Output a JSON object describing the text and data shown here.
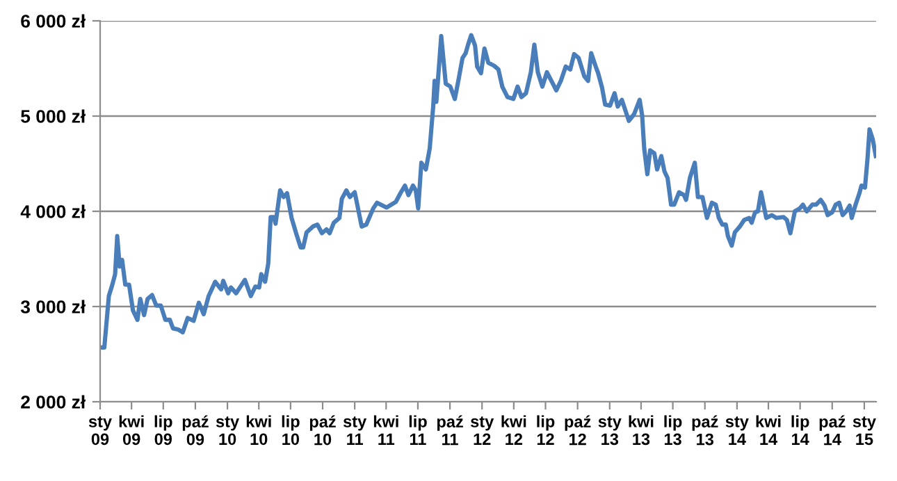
{
  "chart_data": {
    "type": "line",
    "x": [
      "2009-01-03",
      "2009-01-13",
      "2009-01-26",
      "2009-02-05",
      "2009-02-13",
      "2009-02-19",
      "2009-02-26",
      "2009-03-05",
      "2009-03-14",
      "2009-03-25",
      "2009-04-05",
      "2009-04-18",
      "2009-04-26",
      "2009-05-07",
      "2009-05-17",
      "2009-05-30",
      "2009-06-11",
      "2009-06-24",
      "2009-07-07",
      "2009-07-20",
      "2009-07-29",
      "2009-08-12",
      "2009-08-26",
      "2009-09-09",
      "2009-09-26",
      "2009-10-11",
      "2009-10-25",
      "2009-11-08",
      "2009-11-27",
      "2009-12-14",
      "2009-12-20",
      "2010-01-03",
      "2010-01-11",
      "2010-01-26",
      "2010-02-20",
      "2010-03-09",
      "2010-03-22",
      "2010-04-02",
      "2010-04-08",
      "2010-04-19",
      "2010-04-28",
      "2010-05-05",
      "2010-05-14",
      "2010-05-19",
      "2010-06-01",
      "2010-06-11",
      "2010-06-21",
      "2010-07-04",
      "2010-07-17",
      "2010-07-30",
      "2010-08-06",
      "2010-08-16",
      "2010-09-03",
      "2010-09-16",
      "2010-09-29",
      "2010-10-12",
      "2010-10-21",
      "2010-11-02",
      "2010-11-18",
      "2010-11-25",
      "2010-12-08",
      "2010-12-18",
      "2011-01-01",
      "2011-01-21",
      "2011-02-03",
      "2011-02-23",
      "2011-03-06",
      "2011-04-02",
      "2011-04-29",
      "2011-05-12",
      "2011-05-25",
      "2011-06-04",
      "2011-06-17",
      "2011-06-25",
      "2011-07-02",
      "2011-07-11",
      "2011-07-24",
      "2011-08-04",
      "2011-08-14",
      "2011-08-18",
      "2011-08-23",
      "2011-09-06",
      "2011-09-19",
      "2011-10-02",
      "2011-10-15",
      "2011-10-26",
      "2011-11-06",
      "2011-11-15",
      "2011-11-22",
      "2011-12-01",
      "2011-12-12",
      "2011-12-18",
      "2011-12-29",
      "2012-01-08",
      "2012-01-19",
      "2012-02-04",
      "2012-02-17",
      "2012-02-28",
      "2012-03-14",
      "2012-03-31",
      "2012-04-12",
      "2012-04-23",
      "2012-05-06",
      "2012-05-20",
      "2012-05-30",
      "2012-06-09",
      "2012-06-22",
      "2012-07-05",
      "2012-07-18",
      "2012-08-01",
      "2012-08-14",
      "2012-08-28",
      "2012-09-10",
      "2012-09-21",
      "2012-10-04",
      "2012-10-20",
      "2012-10-31",
      "2012-11-09",
      "2012-11-22",
      "2012-11-29",
      "2012-12-10",
      "2012-12-19",
      "2013-01-02",
      "2013-01-15",
      "2013-01-24",
      "2013-02-05",
      "2013-02-25",
      "2013-03-12",
      "2013-03-28",
      "2013-04-04",
      "2013-04-10",
      "2013-04-19",
      "2013-04-27",
      "2013-05-09",
      "2013-05-17",
      "2013-05-29",
      "2013-06-07",
      "2013-06-16",
      "2013-06-26",
      "2013-07-05",
      "2013-07-19",
      "2013-08-02",
      "2013-08-08",
      "2013-08-19",
      "2013-09-02",
      "2013-09-11",
      "2013-09-24",
      "2013-10-07",
      "2013-10-21",
      "2013-11-01",
      "2013-11-10",
      "2013-11-20",
      "2013-11-30",
      "2013-12-06",
      "2013-12-17",
      "2013-12-26",
      "2014-01-09",
      "2014-01-22",
      "2014-02-05",
      "2014-02-12",
      "2014-02-22",
      "2014-03-02",
      "2014-03-11",
      "2014-03-26",
      "2014-04-11",
      "2014-04-24",
      "2014-05-14",
      "2014-05-24",
      "2014-06-03",
      "2014-06-16",
      "2014-06-30",
      "2014-07-09",
      "2014-07-20",
      "2014-08-05",
      "2014-08-16",
      "2014-08-29",
      "2014-09-09",
      "2014-09-18",
      "2014-10-01",
      "2014-10-11",
      "2014-10-21",
      "2014-10-31",
      "2014-11-10",
      "2014-11-20",
      "2014-11-26",
      "2014-12-07",
      "2014-12-18",
      "2014-12-24",
      "2015-01-03",
      "2015-01-10",
      "2015-01-16",
      "2015-01-25",
      "2015-02-03"
    ],
    "series": [
      {
        "color": "#4a7ebb",
        "values": [
          2570,
          2570,
          3110,
          3230,
          3340,
          3740,
          3420,
          3490,
          3230,
          3230,
          2960,
          2860,
          3080,
          2910,
          3080,
          3120,
          3010,
          3010,
          2860,
          2860,
          2770,
          2760,
          2730,
          2880,
          2850,
          3040,
          2920,
          3110,
          3260,
          3180,
          3270,
          3140,
          3200,
          3140,
          3280,
          3110,
          3210,
          3200,
          3340,
          3260,
          3450,
          3940,
          3940,
          3870,
          4220,
          4150,
          4190,
          3930,
          3770,
          3620,
          3620,
          3780,
          3840,
          3860,
          3770,
          3810,
          3770,
          3880,
          3930,
          4130,
          4220,
          4150,
          4200,
          3840,
          3860,
          4030,
          4090,
          4040,
          4100,
          4190,
          4270,
          4170,
          4270,
          4220,
          4030,
          4510,
          4440,
          4660,
          5100,
          5370,
          5150,
          5840,
          5340,
          5310,
          5180,
          5390,
          5610,
          5660,
          5750,
          5850,
          5740,
          5520,
          5450,
          5710,
          5560,
          5530,
          5490,
          5310,
          5200,
          5180,
          5310,
          5200,
          5240,
          5460,
          5750,
          5460,
          5310,
          5460,
          5370,
          5270,
          5370,
          5520,
          5490,
          5650,
          5610,
          5420,
          5370,
          5660,
          5520,
          5450,
          5300,
          5120,
          5110,
          5240,
          5100,
          5170,
          4950,
          5020,
          5170,
          5010,
          4660,
          4390,
          4640,
          4610,
          4440,
          4580,
          4420,
          4350,
          4070,
          4070,
          4200,
          4170,
          4120,
          4350,
          4510,
          4150,
          4150,
          3930,
          4090,
          4070,
          3930,
          3860,
          3860,
          3740,
          3640,
          3780,
          3840,
          3910,
          3930,
          3880,
          3990,
          4000,
          4200,
          3930,
          3960,
          3930,
          3940,
          3910,
          3770,
          4000,
          4030,
          4070,
          4000,
          4070,
          4070,
          4120,
          4060,
          3960,
          3990,
          4070,
          4090,
          3960,
          4000,
          4060,
          3930,
          4070,
          4190,
          4270,
          4250,
          4540,
          4860,
          4760,
          4580
        ]
      }
    ],
    "xlim": [
      "2009-01-01",
      "2015-02-04"
    ],
    "xticks": [
      {
        "value": "2009-01-01",
        "label": "sty\n09"
      },
      {
        "value": "2009-04-01",
        "label": "kwi\n09"
      },
      {
        "value": "2009-07-01",
        "label": "lip\n09"
      },
      {
        "value": "2009-10-01",
        "label": "paź\n09"
      },
      {
        "value": "2010-01-01",
        "label": "sty\n10"
      },
      {
        "value": "2010-04-01",
        "label": "kwi\n10"
      },
      {
        "value": "2010-07-01",
        "label": "lip\n10"
      },
      {
        "value": "2010-10-01",
        "label": "paź\n10"
      },
      {
        "value": "2011-01-01",
        "label": "sty\n11"
      },
      {
        "value": "2011-04-01",
        "label": "kwi\n11"
      },
      {
        "value": "2011-07-01",
        "label": "lip\n11"
      },
      {
        "value": "2011-10-01",
        "label": "paź\n11"
      },
      {
        "value": "2012-01-01",
        "label": "sty\n12"
      },
      {
        "value": "2012-04-01",
        "label": "kwi\n12"
      },
      {
        "value": "2012-07-01",
        "label": "lip\n12"
      },
      {
        "value": "2012-10-01",
        "label": "paź\n12"
      },
      {
        "value": "2013-01-01",
        "label": "sty\n13"
      },
      {
        "value": "2013-04-01",
        "label": "kwi\n13"
      },
      {
        "value": "2013-07-01",
        "label": "lip\n13"
      },
      {
        "value": "2013-10-01",
        "label": "paź\n13"
      },
      {
        "value": "2014-01-01",
        "label": "sty\n14"
      },
      {
        "value": "2014-04-01",
        "label": "kwi\n14"
      },
      {
        "value": "2014-07-01",
        "label": "lip\n14"
      },
      {
        "value": "2014-10-01",
        "label": "paź\n14"
      },
      {
        "value": "2015-01-01",
        "label": "sty\n15"
      }
    ],
    "ylim": [
      2000,
      6000
    ],
    "yticks": [
      {
        "value": 2000,
        "label": "2 000 zł"
      },
      {
        "value": 3000,
        "label": "3 000 zł"
      },
      {
        "value": 4000,
        "label": "4 000 zł"
      },
      {
        "value": 5000,
        "label": "5 000 zł"
      },
      {
        "value": 6000,
        "label": "6 000 zł"
      }
    ],
    "grid": "y",
    "marker": "none",
    "line_style": "solid"
  }
}
